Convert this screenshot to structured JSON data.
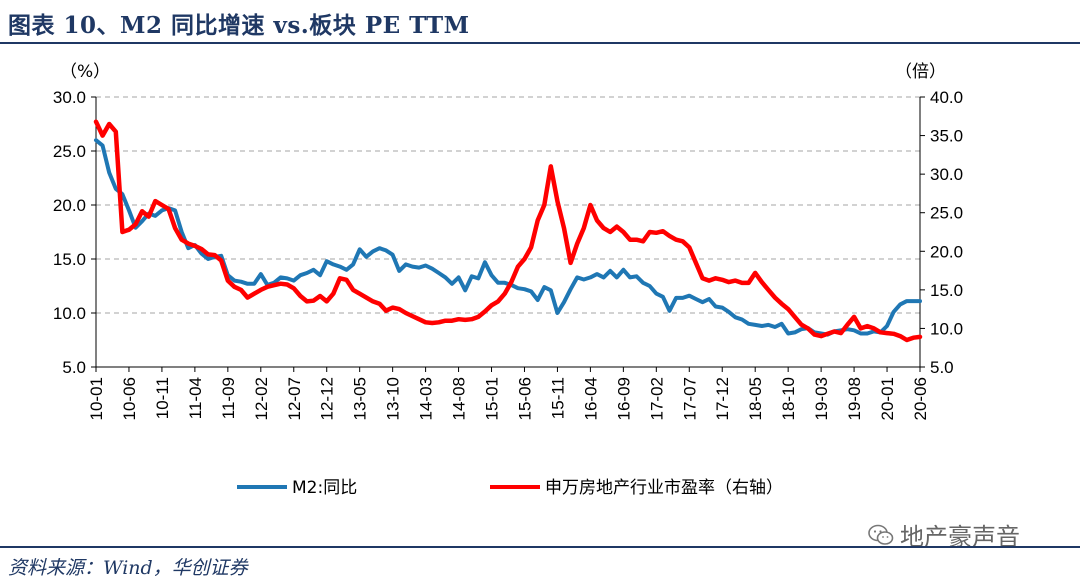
{
  "header": {
    "title": "图表 10、M2 同比增速 vs.板块 PE TTM"
  },
  "footer": {
    "source": "资料来源：Wind，华创证券"
  },
  "watermark": {
    "text": "地产豪声音"
  },
  "chart_data": {
    "type": "line",
    "title": "图表 10、M2 同比增速 vs.板块 PE TTM",
    "left_axis": {
      "unit": "（%）",
      "range": [
        5.0,
        30.0
      ],
      "ticks": [
        "5.0",
        "10.0",
        "15.0",
        "20.0",
        "25.0",
        "30.0"
      ]
    },
    "right_axis": {
      "unit": "（倍）",
      "range": [
        5.0,
        40.0
      ],
      "ticks": [
        "5.0",
        "10.0",
        "15.0",
        "20.0",
        "25.0",
        "30.0",
        "35.0",
        "40.0"
      ]
    },
    "x_ticks": [
      "10-01",
      "10-06",
      "10-11",
      "11-04",
      "11-09",
      "12-02",
      "12-07",
      "12-12",
      "13-05",
      "13-10",
      "14-03",
      "14-08",
      "15-01",
      "15-06",
      "15-11",
      "16-04",
      "16-09",
      "17-02",
      "17-07",
      "17-12",
      "18-05",
      "18-10",
      "19-03",
      "19-08",
      "20-01",
      "20-06"
    ],
    "x_range": [
      0,
      125
    ],
    "grid": true,
    "legend_position": "bottom",
    "series": [
      {
        "name": "M2:同比",
        "axis": "left",
        "color": "#1f77b4",
        "points": [
          [
            0,
            26.0
          ],
          [
            1,
            25.5
          ],
          [
            2,
            23.0
          ],
          [
            3,
            21.5
          ],
          [
            4,
            21.0
          ],
          [
            5,
            19.5
          ],
          [
            6,
            17.9
          ],
          [
            7,
            18.5
          ],
          [
            8,
            19.2
          ],
          [
            9,
            19.0
          ],
          [
            10,
            19.5
          ],
          [
            11,
            19.7
          ],
          [
            12,
            19.5
          ],
          [
            13,
            17.5
          ],
          [
            14,
            16.0
          ],
          [
            15,
            16.3
          ],
          [
            16,
            15.5
          ],
          [
            17,
            15.0
          ],
          [
            18,
            15.2
          ],
          [
            19,
            15.3
          ],
          [
            20,
            13.5
          ],
          [
            21,
            13.0
          ],
          [
            22,
            12.9
          ],
          [
            23,
            12.7
          ],
          [
            24,
            12.7
          ],
          [
            25,
            13.6
          ],
          [
            26,
            12.6
          ],
          [
            27,
            12.8
          ],
          [
            28,
            13.3
          ],
          [
            29,
            13.2
          ],
          [
            30,
            13.0
          ],
          [
            31,
            13.5
          ],
          [
            32,
            13.7
          ],
          [
            33,
            14.0
          ],
          [
            34,
            13.5
          ],
          [
            35,
            14.8
          ],
          [
            36,
            14.5
          ],
          [
            37,
            14.3
          ],
          [
            38,
            14.0
          ],
          [
            39,
            14.5
          ],
          [
            40,
            15.9
          ],
          [
            41,
            15.2
          ],
          [
            42,
            15.7
          ],
          [
            43,
            16.0
          ],
          [
            44,
            15.8
          ],
          [
            45,
            15.4
          ],
          [
            46,
            13.9
          ],
          [
            47,
            14.5
          ],
          [
            48,
            14.3
          ],
          [
            49,
            14.2
          ],
          [
            50,
            14.4
          ],
          [
            51,
            14.1
          ],
          [
            52,
            13.7
          ],
          [
            53,
            13.3
          ],
          [
            54,
            12.7
          ],
          [
            55,
            13.3
          ],
          [
            56,
            12.1
          ],
          [
            57,
            13.4
          ],
          [
            58,
            13.2
          ],
          [
            59,
            14.7
          ],
          [
            60,
            13.5
          ],
          [
            61,
            12.8
          ],
          [
            62,
            12.8
          ],
          [
            63,
            12.6
          ],
          [
            64,
            12.3
          ],
          [
            65,
            12.2
          ],
          [
            66,
            12.0
          ],
          [
            67,
            11.2
          ],
          [
            68,
            12.4
          ],
          [
            69,
            12.1
          ],
          [
            70,
            10.0
          ],
          [
            71,
            11.0
          ],
          [
            72,
            12.2
          ],
          [
            73,
            13.3
          ],
          [
            74,
            13.1
          ],
          [
            75,
            13.3
          ],
          [
            76,
            13.6
          ],
          [
            77,
            13.3
          ],
          [
            78,
            13.9
          ],
          [
            79,
            13.3
          ],
          [
            80,
            14.0
          ],
          [
            81,
            13.3
          ],
          [
            82,
            13.4
          ],
          [
            83,
            12.8
          ],
          [
            84,
            12.5
          ],
          [
            85,
            11.8
          ],
          [
            86,
            11.5
          ],
          [
            87,
            10.2
          ],
          [
            88,
            11.4
          ],
          [
            89,
            11.4
          ],
          [
            90,
            11.6
          ],
          [
            91,
            11.3
          ],
          [
            92,
            11.0
          ],
          [
            93,
            11.3
          ],
          [
            94,
            10.6
          ],
          [
            95,
            10.5
          ],
          [
            96,
            10.1
          ],
          [
            97,
            9.6
          ],
          [
            98,
            9.4
          ],
          [
            99,
            9.0
          ],
          [
            100,
            8.9
          ],
          [
            101,
            8.8
          ],
          [
            102,
            8.9
          ],
          [
            103,
            8.7
          ],
          [
            104,
            9.0
          ],
          [
            105,
            8.1
          ],
          [
            106,
            8.2
          ],
          [
            107,
            8.5
          ],
          [
            108,
            8.6
          ],
          [
            109,
            8.2
          ],
          [
            110,
            8.1
          ],
          [
            111,
            8.0
          ],
          [
            112,
            8.3
          ],
          [
            113,
            8.4
          ],
          [
            114,
            8.5
          ],
          [
            115,
            8.4
          ],
          [
            116,
            8.1
          ],
          [
            117,
            8.1
          ],
          [
            118,
            8.3
          ],
          [
            119,
            8.2
          ],
          [
            120,
            8.8
          ],
          [
            121,
            10.1
          ],
          [
            122,
            10.8
          ],
          [
            123,
            11.1
          ],
          [
            124,
            11.1
          ],
          [
            125,
            11.1
          ]
        ]
      },
      {
        "name": "申万房地产行业市盈率（右轴）",
        "axis": "right",
        "color": "#ff0000",
        "points": [
          [
            0,
            36.8
          ],
          [
            1,
            35.0
          ],
          [
            2,
            36.5
          ],
          [
            3,
            35.5
          ],
          [
            4,
            22.5
          ],
          [
            5,
            22.8
          ],
          [
            6,
            23.5
          ],
          [
            7,
            25.2
          ],
          [
            8,
            24.5
          ],
          [
            9,
            26.5
          ],
          [
            10,
            26.0
          ],
          [
            11,
            25.5
          ],
          [
            12,
            23.0
          ],
          [
            13,
            21.5
          ],
          [
            14,
            21.0
          ],
          [
            15,
            20.7
          ],
          [
            16,
            20.3
          ],
          [
            17,
            19.6
          ],
          [
            18,
            19.5
          ],
          [
            19,
            18.8
          ],
          [
            20,
            16.2
          ],
          [
            21,
            15.4
          ],
          [
            22,
            15.0
          ],
          [
            23,
            14.0
          ],
          [
            24,
            14.5
          ],
          [
            25,
            15.0
          ],
          [
            26,
            15.4
          ],
          [
            27,
            15.6
          ],
          [
            28,
            15.8
          ],
          [
            29,
            15.7
          ],
          [
            30,
            15.2
          ],
          [
            31,
            14.2
          ],
          [
            32,
            13.5
          ],
          [
            33,
            13.6
          ],
          [
            34,
            14.2
          ],
          [
            35,
            13.5
          ],
          [
            36,
            14.5
          ],
          [
            37,
            16.5
          ],
          [
            38,
            16.3
          ],
          [
            39,
            15.0
          ],
          [
            40,
            14.5
          ],
          [
            41,
            14.0
          ],
          [
            42,
            13.5
          ],
          [
            43,
            13.2
          ],
          [
            44,
            12.3
          ],
          [
            45,
            12.7
          ],
          [
            46,
            12.5
          ],
          [
            47,
            12.0
          ],
          [
            48,
            11.6
          ],
          [
            49,
            11.2
          ],
          [
            50,
            10.8
          ],
          [
            51,
            10.7
          ],
          [
            52,
            10.8
          ],
          [
            53,
            11.0
          ],
          [
            54,
            11.0
          ],
          [
            55,
            11.2
          ],
          [
            56,
            11.1
          ],
          [
            57,
            11.2
          ],
          [
            58,
            11.5
          ],
          [
            59,
            12.2
          ],
          [
            60,
            13.0
          ],
          [
            61,
            13.5
          ],
          [
            62,
            14.5
          ],
          [
            63,
            16.0
          ],
          [
            64,
            18.0
          ],
          [
            65,
            19.0
          ],
          [
            66,
            20.5
          ],
          [
            67,
            24.0
          ],
          [
            68,
            26.0
          ],
          [
            69,
            31.0
          ],
          [
            70,
            26.5
          ],
          [
            71,
            23.0
          ],
          [
            72,
            18.5
          ],
          [
            73,
            21.0
          ],
          [
            74,
            23.0
          ],
          [
            75,
            26.0
          ],
          [
            76,
            24.0
          ],
          [
            77,
            23.0
          ],
          [
            78,
            22.5
          ],
          [
            79,
            23.2
          ],
          [
            80,
            22.5
          ],
          [
            81,
            21.5
          ],
          [
            82,
            21.5
          ],
          [
            83,
            21.3
          ],
          [
            84,
            22.5
          ],
          [
            85,
            22.4
          ],
          [
            86,
            22.6
          ],
          [
            87,
            22.0
          ],
          [
            88,
            21.5
          ],
          [
            89,
            21.3
          ],
          [
            90,
            20.5
          ],
          [
            91,
            18.5
          ],
          [
            92,
            16.5
          ],
          [
            93,
            16.2
          ],
          [
            94,
            16.5
          ],
          [
            95,
            16.3
          ],
          [
            96,
            16.0
          ],
          [
            97,
            16.2
          ],
          [
            98,
            15.9
          ],
          [
            99,
            15.9
          ],
          [
            100,
            17.2
          ],
          [
            101,
            16.0
          ],
          [
            102,
            15.0
          ],
          [
            103,
            14.0
          ],
          [
            104,
            13.2
          ],
          [
            105,
            12.5
          ],
          [
            106,
            11.5
          ],
          [
            107,
            10.5
          ],
          [
            108,
            10.0
          ],
          [
            109,
            9.2
          ],
          [
            110,
            9.0
          ],
          [
            111,
            9.3
          ],
          [
            112,
            9.6
          ],
          [
            113,
            9.4
          ],
          [
            114,
            10.5
          ],
          [
            115,
            11.5
          ],
          [
            116,
            10.0
          ],
          [
            117,
            10.3
          ],
          [
            118,
            10.0
          ],
          [
            119,
            9.5
          ],
          [
            120,
            9.4
          ],
          [
            121,
            9.3
          ],
          [
            122,
            9.0
          ],
          [
            123,
            8.5
          ],
          [
            124,
            8.8
          ],
          [
            125,
            8.9
          ]
        ]
      }
    ]
  }
}
